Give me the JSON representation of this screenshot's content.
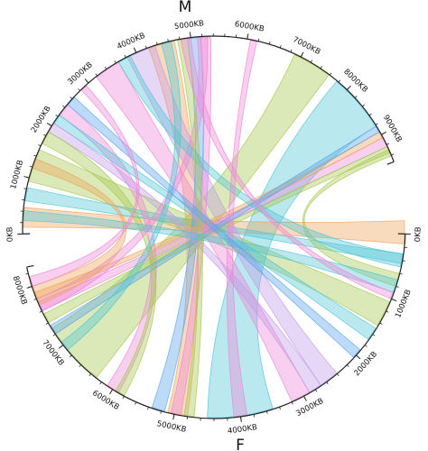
{
  "groups": [
    {
      "label": "M",
      "ticks": [
        "0KB",
        "1000KB",
        "2000KB",
        "3000KB",
        "4000KB",
        "5000KB",
        "6000KB",
        "7000KB",
        "8000KB",
        "9000KB"
      ]
    },
    {
      "label": "F",
      "ticks": [
        "0KB",
        "1000KB",
        "2000KB",
        "3000KB",
        "4000KB",
        "5000KB",
        "6000KB",
        "7000KB",
        "8000KB"
      ]
    }
  ]
}
